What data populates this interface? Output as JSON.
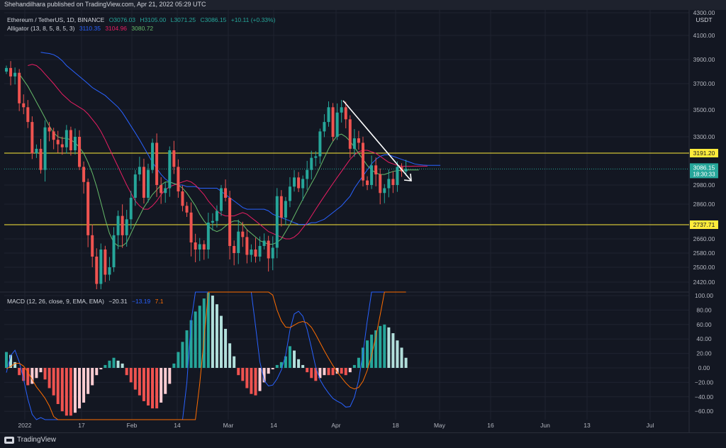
{
  "header": {
    "publisher": "Shehandilhara published on TradingView.com, Apr 21, 2022 05:29 UTC"
  },
  "legend": {
    "symbol": "Ethereum / TetherUS, 1D, BINANCE",
    "open": "O3076.03",
    "high": "H3105.00",
    "low": "L3071.25",
    "close": "C3086.15",
    "change": "+10.11 (+0.33%)",
    "alligator_label": "Alligator (13, 8, 5, 8, 5, 3)",
    "alligator_jaw": "3110.35",
    "alligator_teeth": "3104.96",
    "alligator_lips": "3080.72",
    "macd_label": "MACD (12, 26, close, 9, EMA, EMA)",
    "macd_hist": "−20.31",
    "macd_line": "−13.19",
    "macd_signal": "7.1"
  },
  "footer": {
    "brand": "TradingView"
  },
  "colors": {
    "bg": "#131722",
    "up": "#26a69a",
    "down": "#ef5350",
    "up_light": "#b2dfdb",
    "down_light": "#ffcdd2",
    "jaw": "#2962ff",
    "teeth": "#e91e63",
    "lips": "#66bb6a",
    "macd": "#2962ff",
    "signal": "#ff6d00",
    "level": "#ffeb3b"
  },
  "chart_data": [
    {
      "type": "candlestick",
      "title": "Ethereum / TetherUS, 1D, BINANCE",
      "currency": "USDT",
      "yticks": [
        4300,
        4100,
        3900,
        3700,
        3500,
        3300,
        2980,
        2860,
        2660,
        2580,
        2500,
        2420
      ],
      "ytick_labels": [
        "4300.00",
        "4100.00",
        "3900.00",
        "3700.00",
        "3500.00",
        "3300.00",
        "2980.00",
        "2860.00",
        "2660.00",
        "2580.00",
        "2500.00",
        "2420.00"
      ],
      "ylim": [
        2380,
        4300
      ],
      "xticks": [
        "2022",
        "17",
        "Feb",
        "14",
        "Mar",
        "14",
        "Apr",
        "18",
        "May",
        "16",
        "Jun",
        "13",
        "Jul"
      ],
      "levels": [
        {
          "value": 3191.2,
          "label": "3191.20"
        },
        {
          "value": 2737.71,
          "label": "2737.71"
        }
      ],
      "last_price": {
        "value": 3086.15,
        "label": "3086.15",
        "countdown": "18:30:33"
      },
      "closes": [
        3830,
        3760,
        3790,
        3550,
        3520,
        3410,
        3190,
        3220,
        3080,
        3370,
        3340,
        3280,
        3250,
        3230,
        3350,
        3210,
        3300,
        3100,
        3000,
        2680,
        2560,
        2410,
        2600,
        2460,
        2500,
        2680,
        2790,
        2680,
        2770,
        2900,
        3050,
        3100,
        2900,
        3080,
        3260,
        2980,
        2930,
        2960,
        3210,
        3100,
        2940,
        2850,
        2810,
        2640,
        2600,
        2630,
        2600,
        2750,
        2760,
        2820,
        2960,
        2900,
        2620,
        2580,
        2700,
        2670,
        2570,
        2600,
        2560,
        2620,
        2650,
        2550,
        2610,
        2910,
        2780,
        2880,
        2970,
        3030,
        2960,
        3020,
        3080,
        3160,
        3170,
        3340,
        3410,
        3520,
        3300,
        3480,
        3520,
        3430,
        3220,
        3290,
        3260,
        3010,
        2980,
        3110,
        3050,
        2930,
        2960,
        3020,
        2980,
        3100,
        3070,
        3086
      ],
      "jaw": [
        3960,
        3955,
        3950,
        3940,
        3920,
        3890,
        3850,
        3820,
        3790,
        3760,
        3730,
        3700,
        3670,
        3650,
        3630,
        3610,
        3580,
        3550,
        3520,
        3480,
        3430,
        3380,
        3330,
        3280,
        3230,
        3180,
        3130,
        3090,
        3050,
        3020,
        3000,
        2990,
        2980,
        2980,
        2970,
        2970,
        2970,
        2960,
        2960,
        2960,
        2960,
        2960,
        2940,
        2920,
        2900,
        2880,
        2860,
        2840,
        2830,
        2830,
        2830,
        2830,
        2830,
        2820,
        2800,
        2790,
        2780,
        2770,
        2760,
        2750,
        2740,
        2740,
        2740,
        2750,
        2750,
        2760,
        2770,
        2790,
        2810,
        2830,
        2850,
        2880,
        2910,
        2960,
        3000,
        3040,
        3080,
        3120,
        3150,
        3170,
        3180,
        3180,
        3170,
        3160,
        3150,
        3140,
        3130,
        3120,
        3115,
        3112,
        3110,
        3110,
        3110,
        3110
      ],
      "teeth": [
        3850,
        3860,
        3850,
        3820,
        3780,
        3740,
        3700,
        3660,
        3620,
        3590,
        3560,
        3540,
        3520,
        3500,
        3470,
        3430,
        3390,
        3340,
        3280,
        3220,
        3160,
        3100,
        3040,
        2980,
        2930,
        2880,
        2850,
        2830,
        2830,
        2850,
        2880,
        2920,
        2950,
        2970,
        2980,
        2990,
        3000,
        3010,
        3000,
        2980,
        2950,
        2920,
        2880,
        2850,
        2820,
        2800,
        2790,
        2790,
        2790,
        2800,
        2810,
        2800,
        2780,
        2760,
        2740,
        2720,
        2700,
        2690,
        2680,
        2670,
        2660,
        2660,
        2670,
        2690,
        2720,
        2750,
        2790,
        2830,
        2870,
        2910,
        2950,
        2990,
        3030,
        3070,
        3110,
        3150,
        3180,
        3200,
        3210,
        3210,
        3200,
        3190,
        3170,
        3150,
        3130,
        3120,
        3110,
        3105,
        3104,
        3104,
        3105,
        3105,
        3105,
        3105
      ],
      "lips": [
        3780,
        3730,
        3680,
        3620,
        3560,
        3500,
        3440,
        3380,
        3330,
        3300,
        3290,
        3290,
        3280,
        3260,
        3230,
        3190,
        3130,
        3060,
        2970,
        2870,
        2770,
        2690,
        2640,
        2620,
        2620,
        2640,
        2690,
        2740,
        2790,
        2840,
        2880,
        2920,
        2950,
        2980,
        3000,
        3000,
        2990,
        2980,
        2960,
        2930,
        2890,
        2850,
        2800,
        2760,
        2730,
        2710,
        2700,
        2710,
        2730,
        2750,
        2760,
        2760,
        2740,
        2710,
        2690,
        2670,
        2650,
        2640,
        2630,
        2630,
        2640,
        2660,
        2700,
        2740,
        2790,
        2840,
        2890,
        2940,
        2990,
        3040,
        3100,
        3160,
        3220,
        3270,
        3310,
        3320,
        3300,
        3270,
        3230,
        3190,
        3150,
        3110,
        3080,
        3060,
        3050,
        3050,
        3060,
        3070,
        3075,
        3078,
        3080,
        3080,
        3080,
        3080
      ]
    },
    {
      "type": "bar",
      "title": "MACD (12, 26, close, 9, EMA, EMA)",
      "yticks": [
        100,
        80,
        60,
        40,
        20,
        0,
        -20,
        -40,
        -60
      ],
      "ytick_labels": [
        "100.00",
        "80.00",
        "60.00",
        "40.00",
        "20.00",
        "0.00",
        "−20.00",
        "−40.00",
        "−60.00"
      ],
      "ylim": [
        -68,
        104
      ],
      "histogram": [
        22,
        18,
        8,
        -10,
        -18,
        -24,
        -22,
        -14,
        -6,
        -16,
        -28,
        -38,
        -50,
        -60,
        -66,
        -66,
        -62,
        -56,
        -48,
        -36,
        -24,
        -10,
        -2,
        4,
        10,
        14,
        10,
        6,
        -10,
        -20,
        -30,
        -38,
        -46,
        -52,
        -56,
        -56,
        -48,
        -36,
        -22,
        6,
        22,
        36,
        52,
        66,
        78,
        86,
        96,
        104,
        100,
        88,
        72,
        54,
        34,
        16,
        -10,
        -18,
        -28,
        -36,
        -38,
        -32,
        -20,
        -8,
        -2,
        4,
        8,
        16,
        30,
        24,
        12,
        4,
        -6,
        -14,
        -18,
        -14,
        -10,
        -10,
        -10,
        -8,
        -8,
        -10,
        -6,
        4,
        14,
        28,
        38,
        46,
        52,
        58,
        60,
        56,
        48,
        38,
        28,
        14
      ]
    }
  ]
}
